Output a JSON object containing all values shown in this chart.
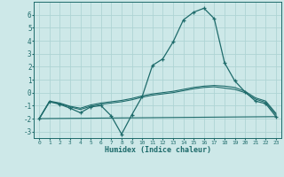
{
  "xlabel": "Humidex (Indice chaleur)",
  "xlim": [
    -0.5,
    23.5
  ],
  "ylim": [
    -3.5,
    7.0
  ],
  "yticks": [
    -3,
    -2,
    -1,
    0,
    1,
    2,
    3,
    4,
    5,
    6
  ],
  "xticks": [
    0,
    1,
    2,
    3,
    4,
    5,
    6,
    7,
    8,
    9,
    10,
    11,
    12,
    13,
    14,
    15,
    16,
    17,
    18,
    19,
    20,
    21,
    22,
    23
  ],
  "bg_color": "#cde8e8",
  "line_color": "#1e6b6b",
  "grid_color": "#aed4d4",
  "series1_x": [
    0,
    1,
    2,
    3,
    4,
    5,
    6,
    7,
    8,
    9,
    10,
    11,
    12,
    13,
    14,
    15,
    16,
    17,
    18,
    19,
    20,
    21,
    22,
    23
  ],
  "series1_y": [
    -2.0,
    -0.7,
    -0.9,
    -1.2,
    -1.55,
    -1.1,
    -1.0,
    -1.8,
    -3.2,
    -1.7,
    -0.3,
    2.1,
    2.6,
    3.9,
    5.6,
    6.2,
    6.5,
    5.7,
    2.3,
    0.9,
    0.05,
    -0.65,
    -0.85,
    -1.85
  ],
  "series2_x": [
    0,
    1,
    2,
    3,
    4,
    5,
    6,
    7,
    8,
    9,
    10,
    11,
    12,
    13,
    14,
    15,
    16,
    17,
    18,
    19,
    20,
    21,
    22,
    23
  ],
  "series2_y": [
    -2.0,
    -0.7,
    -0.85,
    -1.1,
    -1.3,
    -1.05,
    -0.9,
    -0.8,
    -0.7,
    -0.55,
    -0.35,
    -0.2,
    -0.1,
    0.0,
    0.15,
    0.3,
    0.4,
    0.45,
    0.35,
    0.25,
    0.0,
    -0.5,
    -0.75,
    -1.7
  ],
  "series3_x": [
    0,
    1,
    2,
    3,
    4,
    5,
    6,
    7,
    8,
    9,
    10,
    11,
    12,
    13,
    14,
    15,
    16,
    17,
    18,
    19,
    20,
    21,
    22,
    23
  ],
  "series3_y": [
    -2.0,
    -0.65,
    -0.8,
    -1.05,
    -1.2,
    -0.95,
    -0.8,
    -0.7,
    -0.6,
    -0.45,
    -0.25,
    -0.1,
    0.0,
    0.1,
    0.25,
    0.4,
    0.5,
    0.55,
    0.5,
    0.4,
    0.1,
    -0.4,
    -0.65,
    -1.6
  ],
  "series4_x": [
    0,
    23
  ],
  "series4_y": [
    -2.0,
    -1.85
  ]
}
